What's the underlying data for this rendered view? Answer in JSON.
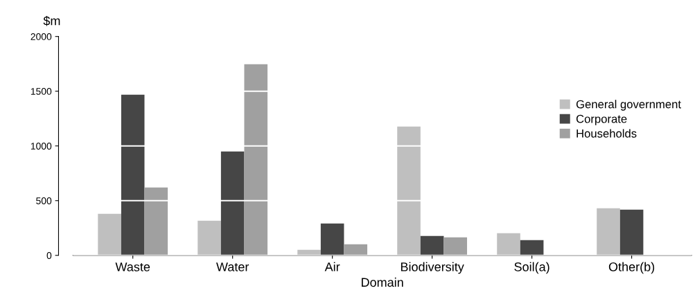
{
  "chart_data": {
    "type": "bar",
    "xlabel": "Domain",
    "ylabel": "$m",
    "categories": [
      "Waste",
      "Water",
      "Air",
      "Biodiversity",
      "Soil(a)",
      "Other(b)"
    ],
    "series": [
      {
        "name": "General government",
        "color": "#bfbfbf",
        "values": [
          380,
          316,
          51,
          1177,
          203,
          430
        ]
      },
      {
        "name": "Corporate",
        "color": "#464646",
        "values": [
          1468,
          949,
          291,
          177,
          139,
          418
        ]
      },
      {
        "name": "Households",
        "color": "#a0a0a0",
        "values": [
          620,
          1747,
          101,
          165,
          null,
          null
        ]
      }
    ],
    "ylim": [
      0,
      2000
    ],
    "yticks": [
      0,
      500,
      1000,
      1500,
      2000
    ],
    "grid": "y",
    "legend": "right"
  }
}
